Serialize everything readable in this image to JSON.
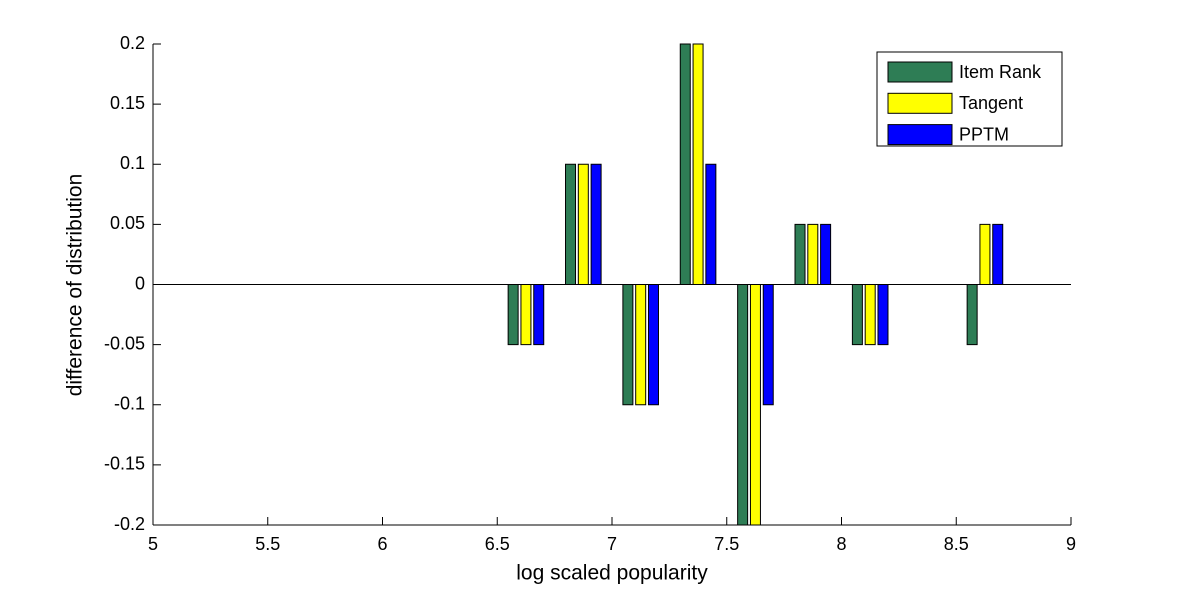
{
  "chart_data": {
    "type": "bar",
    "xlabel": "log scaled popularity",
    "ylabel": "difference of distribution",
    "x": [
      6.625,
      6.875,
      7.125,
      7.375,
      7.625,
      7.875,
      8.125,
      8.375,
      8.625
    ],
    "series": [
      {
        "name": "Item Rank",
        "color": "#2e7d55",
        "values": [
          -0.05,
          0.1,
          -0.1,
          0.2,
          -0.2,
          0.05,
          -0.05,
          0,
          -0.05
        ]
      },
      {
        "name": "Tangent",
        "color": "#ffff00",
        "values": [
          -0.05,
          0.1,
          -0.1,
          0.2,
          -0.2,
          0.05,
          -0.05,
          0,
          0.05
        ]
      },
      {
        "name": "PPTM",
        "color": "#0000ff",
        "values": [
          -0.05,
          0.1,
          -0.1,
          0.1,
          -0.1,
          0.05,
          -0.05,
          0,
          0.05
        ]
      }
    ],
    "xlim": [
      5,
      9
    ],
    "xticks": [
      5,
      5.5,
      6,
      6.5,
      7,
      7.5,
      8,
      8.5,
      9
    ],
    "ylim": [
      -0.2,
      0.2
    ],
    "yticks": [
      -0.2,
      -0.15,
      -0.1,
      -0.05,
      0,
      0.05,
      0.1,
      0.15,
      0.2
    ],
    "legend": "top-right"
  }
}
